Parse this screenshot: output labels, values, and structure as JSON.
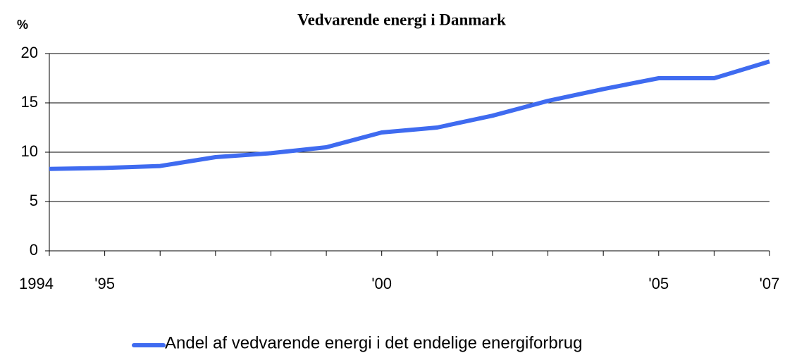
{
  "chart_data": {
    "type": "line",
    "title": "Vedvarende energi i Danmark",
    "y_label": "%",
    "categories": [
      "1994",
      "'95",
      null,
      null,
      null,
      null,
      "'00",
      null,
      null,
      null,
      null,
      "'05",
      null,
      "'07"
    ],
    "series": [
      {
        "name": "Andel af vedvarende energi i det endelige energiforbrug",
        "color": "#3f6bf0",
        "values": [
          8.3,
          8.4,
          8.6,
          9.5,
          9.9,
          10.5,
          12.0,
          12.5,
          13.7,
          15.2,
          16.4,
          17.5,
          17.5,
          19.2
        ]
      }
    ],
    "ylim": [
      0,
      20
    ],
    "yticks": [
      0,
      5,
      10,
      15,
      20
    ],
    "grid": true,
    "legend": "bottom"
  }
}
